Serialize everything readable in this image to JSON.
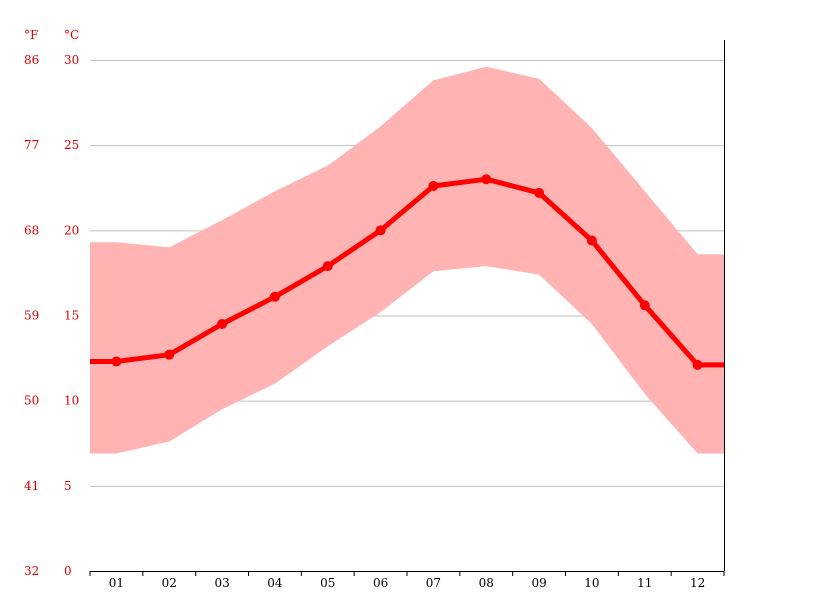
{
  "chart_data": {
    "type": "line",
    "unit_f": "°F",
    "unit_c": "°C",
    "categories": [
      "01",
      "02",
      "03",
      "04",
      "05",
      "06",
      "07",
      "08",
      "09",
      "10",
      "11",
      "12"
    ],
    "ylim": [
      0,
      30
    ],
    "y_ticks_c": [
      "0",
      "5",
      "10",
      "15",
      "20",
      "25",
      "30"
    ],
    "y_ticks_f": [
      "32",
      "41",
      "50",
      "59",
      "68",
      "77",
      "86"
    ],
    "series": [
      {
        "values": [
          12.3,
          12.7,
          14.5,
          16.1,
          17.9,
          20.0,
          22.6,
          23.0,
          22.2,
          19.4,
          15.6,
          12.1
        ]
      }
    ],
    "band": {
      "high": [
        19.3,
        19.0,
        20.6,
        22.3,
        23.8,
        26.1,
        28.8,
        29.6,
        28.9,
        26.0,
        22.3,
        18.6
      ],
      "low": [
        6.9,
        7.6,
        9.5,
        11.0,
        13.2,
        15.2,
        17.6,
        17.9,
        17.4,
        14.5,
        10.4,
        6.9
      ]
    },
    "grid": true,
    "colors": {
      "line": "#ff0000",
      "band": "#ffb3b3",
      "grid": "#c0c0c0",
      "axis_text": "#e00000"
    }
  }
}
